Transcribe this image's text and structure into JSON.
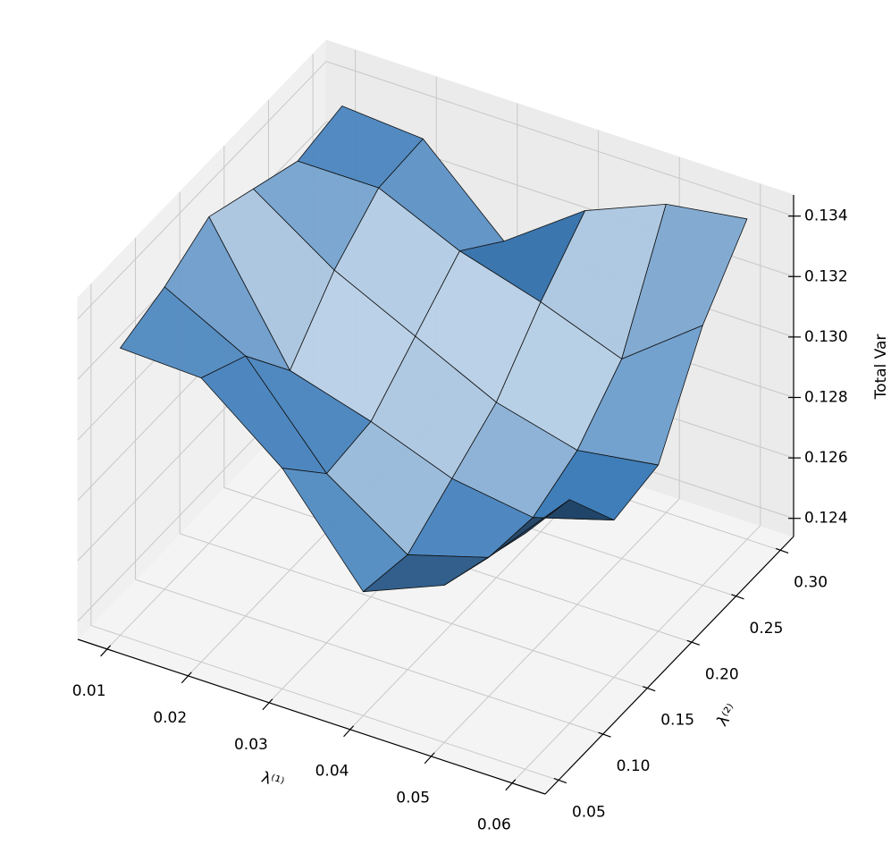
{
  "chart_data": {
    "type": "surface",
    "xlabel": "λ⁽¹⁾",
    "ylabel": "λ⁽²⁾",
    "zlabel": "Total Var",
    "color": "#3a7ab8",
    "x": [
      0.01,
      0.02,
      0.03,
      0.04,
      0.05,
      0.06
    ],
    "y": [
      0.05,
      0.1,
      0.15,
      0.2,
      0.25,
      0.3
    ],
    "z": [
      [
        0.1329,
        0.1328,
        0.1307,
        0.1275,
        0.1286,
        0.1312
      ],
      [
        0.1334,
        0.132,
        0.129,
        0.1272,
        0.128,
        0.1308
      ],
      [
        0.1342,
        0.13,
        0.1292,
        0.1282,
        0.1278,
        0.1286
      ],
      [
        0.1336,
        0.1318,
        0.1305,
        0.1292,
        0.1285,
        0.1289
      ],
      [
        0.133,
        0.133,
        0.1318,
        0.131,
        0.13,
        0.132
      ],
      [
        0.1333,
        0.1331,
        0.1306,
        0.1325,
        0.1336,
        0.134
      ]
    ],
    "xlim": [
      0.0064,
      0.0641
    ],
    "ylim": [
      0.035,
      0.315
    ],
    "zlim": [
      0.1234,
      0.1347
    ],
    "xticks": [
      0.01,
      0.02,
      0.03,
      0.04,
      0.05,
      0.06
    ],
    "yticks": [
      0.05,
      {
        "value": 0.1,
        "label": "0.10"
      },
      0.15,
      {
        "value": 0.2,
        "label": "0.20"
      },
      0.25,
      {
        "value": 0.3,
        "label": "0.30"
      }
    ],
    "zticks": [
      0.124,
      0.126,
      0.128,
      {
        "value": 0.13,
        "label": "0.130"
      },
      0.132,
      0.134
    ],
    "grid": true
  }
}
